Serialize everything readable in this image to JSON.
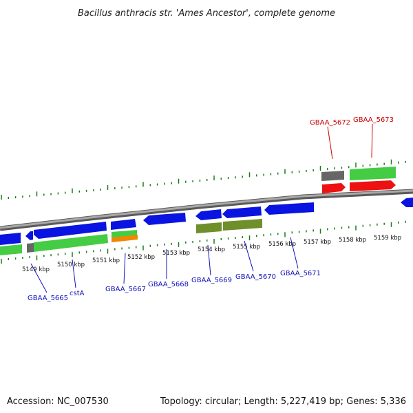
{
  "title": "Bacillus anthracis str. 'Ames Ancestor', complete genome",
  "footer": {
    "accession": "Accession: NC_007530",
    "summary": "Topology: circular; Length: 5,227,419 bp; Genes: 5,336"
  },
  "colors": {
    "backbone": "#8a8a8a",
    "tick": "#1a7a1a",
    "blue_gene": "#0a14e0",
    "green_gene": "#44cc44",
    "olive_gene": "#6f8f2a",
    "red_gene": "#ee1111",
    "gray_gene": "#666666",
    "orange_gene": "#ee8800",
    "label_blue": "#1010bb",
    "label_red": "#cc0000"
  },
  "scale": {
    "unit": "kbp",
    "tick_labels": [
      "5149 kbp",
      "5150 kbp",
      "5151 kbp",
      "5152 kbp",
      "5153 kbp",
      "5154 kbp",
      "5155 kbp",
      "5156 kbp",
      "5157 kbp",
      "5158 kbp",
      "5159 kbp"
    ]
  },
  "genes": [
    {
      "name": "GBAA_5665",
      "color": "blue"
    },
    {
      "name": "cstA",
      "color": "blue"
    },
    {
      "name": "GBAA_5667",
      "color": "blue"
    },
    {
      "name": "GBAA_5668",
      "color": "blue"
    },
    {
      "name": "GBAA_5669",
      "color": "blue"
    },
    {
      "name": "GBAA_5670",
      "color": "blue"
    },
    {
      "name": "GBAA_5671",
      "color": "blue"
    },
    {
      "name": "GBAA_5672",
      "color": "red"
    },
    {
      "name": "GBAA_5673",
      "color": "red"
    }
  ]
}
